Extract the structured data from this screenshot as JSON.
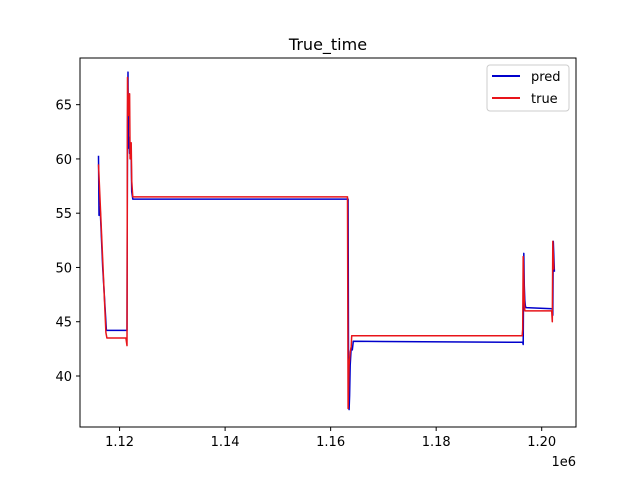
{
  "chart_data": {
    "type": "line",
    "title": "True_time",
    "xlabel": "",
    "ylabel": "",
    "x_offset_label": "1e6",
    "xlim": [
      1112500,
      1206500
    ],
    "ylim": [
      35.3,
      69.3
    ],
    "x_ticks": [
      1120000,
      1140000,
      1160000,
      1180000,
      1200000
    ],
    "x_tick_labels": [
      "1.12",
      "1.14",
      "1.16",
      "1.18",
      "1.20"
    ],
    "y_ticks": [
      40,
      45,
      50,
      55,
      60,
      65
    ],
    "y_tick_labels": [
      "40",
      "45",
      "50",
      "55",
      "60",
      "65"
    ],
    "legend": {
      "position": "top-right"
    },
    "grid": false,
    "series": [
      {
        "name": "pred",
        "color": "#0000cc",
        "points": [
          [
            1116000,
            60.3
          ],
          [
            1116100,
            54.8
          ],
          [
            1116300,
            55.6
          ],
          [
            1116800,
            50.0
          ],
          [
            1117500,
            44.2
          ],
          [
            1121400,
            44.2
          ],
          [
            1121500,
            63.0
          ],
          [
            1121600,
            68.0
          ],
          [
            1121700,
            61.0
          ],
          [
            1121800,
            62.0
          ],
          [
            1121900,
            60.5
          ],
          [
            1122000,
            60.8
          ],
          [
            1122200,
            60.2
          ],
          [
            1122300,
            57.0
          ],
          [
            1122500,
            56.3
          ],
          [
            1163300,
            56.3
          ],
          [
            1163400,
            37.8
          ],
          [
            1163500,
            36.9
          ],
          [
            1163600,
            38.2
          ],
          [
            1163700,
            41.0
          ],
          [
            1163800,
            41.8
          ],
          [
            1163900,
            42.6
          ],
          [
            1164100,
            42.4
          ],
          [
            1164300,
            43.2
          ],
          [
            1196400,
            43.1
          ],
          [
            1196500,
            42.9
          ],
          [
            1196600,
            51.3
          ],
          [
            1196700,
            48.3
          ],
          [
            1196800,
            47.0
          ],
          [
            1196900,
            46.5
          ],
          [
            1197000,
            46.3
          ],
          [
            1202000,
            46.2
          ],
          [
            1202100,
            45.6
          ],
          [
            1202200,
            52.4
          ],
          [
            1202400,
            49.6
          ]
        ]
      },
      {
        "name": "true",
        "color": "#e8141a",
        "points": [
          [
            1116000,
            59.5
          ],
          [
            1117400,
            44.0
          ],
          [
            1117600,
            43.5
          ],
          [
            1121200,
            43.5
          ],
          [
            1121400,
            42.8
          ],
          [
            1121500,
            67.5
          ],
          [
            1121700,
            64.0
          ],
          [
            1121900,
            66.0
          ],
          [
            1122000,
            60.0
          ],
          [
            1122200,
            61.5
          ],
          [
            1122300,
            58.0
          ],
          [
            1122500,
            56.5
          ],
          [
            1163200,
            56.5
          ],
          [
            1163300,
            37.0
          ],
          [
            1163400,
            39.0
          ],
          [
            1163500,
            41.0
          ],
          [
            1163700,
            42.2
          ],
          [
            1163900,
            42.7
          ],
          [
            1164000,
            43.7
          ],
          [
            1196300,
            43.7
          ],
          [
            1196400,
            44.3
          ],
          [
            1196500,
            51.0
          ],
          [
            1196700,
            47.0
          ],
          [
            1196800,
            46.0
          ],
          [
            1201900,
            46.0
          ],
          [
            1202000,
            45.0
          ],
          [
            1202100,
            52.4
          ],
          [
            1202300,
            49.8
          ]
        ]
      }
    ]
  }
}
